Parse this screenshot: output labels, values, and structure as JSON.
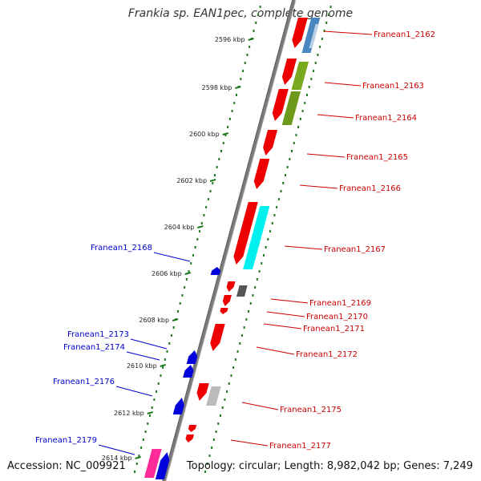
{
  "title": "Frankia sp. EAN1pec, complete genome",
  "accession": "Accession: NC_009921",
  "summary": "Topology: circular; Length: 8,982,042 bp; Genes: 7,249",
  "colors": {
    "backbone": "#8a8a8a",
    "tick_dots": "#1f7a1f",
    "forward_label": "#cc0000",
    "reverse_label": "#0000cc"
  },
  "ticks": [
    {
      "label": "2596 kbp"
    },
    {
      "label": "2598 kbp"
    },
    {
      "label": "2600 kbp"
    },
    {
      "label": "2602 kbp"
    },
    {
      "label": "2604 kbp"
    },
    {
      "label": "2606 kbp"
    },
    {
      "label": "2608 kbp"
    },
    {
      "label": "2610 kbp"
    },
    {
      "label": "2612 kbp"
    },
    {
      "label": "2614 kbp"
    }
  ],
  "forward_labels": [
    {
      "label": "Franean1_2162"
    },
    {
      "label": "Franean1_2163"
    },
    {
      "label": "Franean1_2164"
    },
    {
      "label": "Franean1_2165"
    },
    {
      "label": "Franean1_2166"
    },
    {
      "label": "Franean1_2167"
    },
    {
      "label": "Franean1_2169"
    },
    {
      "label": "Franean1_2170"
    },
    {
      "label": "Franean1_2171"
    },
    {
      "label": "Franean1_2172"
    },
    {
      "label": "Franean1_2175"
    },
    {
      "label": "Franean1_2177"
    }
  ],
  "reverse_labels": [
    {
      "label": "Franean1_2168"
    },
    {
      "label": "Franean1_2173"
    },
    {
      "label": "Franean1_2174"
    },
    {
      "label": "Franean1_2176"
    },
    {
      "label": "Franean1_2179"
    }
  ]
}
